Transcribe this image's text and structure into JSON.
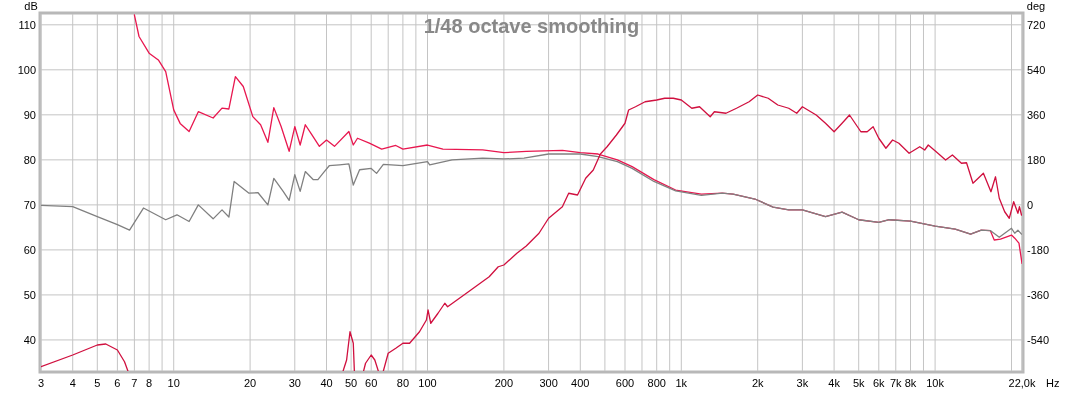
{
  "chart_data": {
    "type": "line",
    "title": "1/48 octave smoothing",
    "xlabel": "Hz",
    "ylabel": "dB",
    "y2label": "deg",
    "log": "x",
    "grid": true,
    "marker": "none",
    "line_style": "solid",
    "xlim": [
      3,
      22000
    ],
    "xticks": [
      3,
      4,
      5,
      6,
      7,
      8,
      {
        "value": 9,
        "label": null
      },
      10,
      20,
      30,
      40,
      50,
      60,
      {
        "value": 70,
        "label": null
      },
      80,
      {
        "value": 90,
        "label": null
      },
      100,
      200,
      300,
      400,
      {
        "value": 500,
        "label": null
      },
      600,
      {
        "value": 700,
        "label": null
      },
      800,
      {
        "value": 900,
        "label": null
      },
      {
        "value": 1000,
        "label": "1k"
      },
      {
        "value": 2000,
        "label": "2k"
      },
      {
        "value": 3000,
        "label": "3k"
      },
      {
        "value": 4000,
        "label": "4k"
      },
      {
        "value": 5000,
        "label": "5k"
      },
      {
        "value": 6000,
        "label": "6k"
      },
      {
        "value": 7000,
        "label": "7k"
      },
      {
        "value": 8000,
        "label": "8k"
      },
      {
        "value": 9000,
        "label": null
      },
      {
        "value": 10000,
        "label": "10k"
      },
      {
        "value": 20000,
        "label": null
      },
      {
        "value": 22000,
        "label": "22,0k"
      }
    ],
    "ylim": [
      33.1,
      112.4
    ],
    "yticks": [
      40,
      50,
      60,
      70,
      80,
      90,
      100,
      110
    ],
    "y2lim": [
      -664,
      764
    ],
    "y2ticks": [
      -540,
      -360,
      -180,
      0,
      180,
      360,
      540,
      720
    ],
    "series": [
      {
        "color": "#e8174f",
        "x": [
          7,
          7.3,
          8,
          8.7,
          9.3,
          10,
          10.6,
          11.5,
          12.5,
          14.3,
          15.5,
          16.5,
          17.5,
          18.8,
          20.5,
          22,
          23.5,
          24.8,
          26.5,
          28.5,
          30,
          31.5,
          33,
          35,
          37.5,
          40,
          43,
          49,
          51,
          53,
          59,
          66,
          75,
          80,
          100,
          115,
          165,
          200,
          245,
          340,
          400,
          470,
          560,
          640,
          780,
          950,
          1200,
          1450,
          1600,
          1950,
          2300,
          2650,
          3000,
          3700,
          4300,
          5000,
          6000,
          6600,
          8000,
          10000,
          12000,
          13800,
          15200,
          16500,
          17100,
          18100,
          20000,
          20600,
          21400,
          22000
        ],
        "values": [
          112.2,
          107.4,
          103.7,
          102.2,
          99.6,
          91.1,
          88.1,
          86.3,
          90.7,
          89.3,
          91.5,
          91.3,
          98.5,
          96.3,
          89.6,
          87.8,
          83.9,
          91.6,
          87.4,
          81.9,
          87.4,
          83.3,
          87.8,
          85.6,
          83,
          84.4,
          83,
          86.3,
          83.3,
          84.8,
          83.7,
          82.4,
          83.2,
          82.4,
          83.3,
          82.4,
          82.2,
          81.6,
          81.9,
          82.1,
          81.6,
          81.3,
          80,
          78.5,
          75.6,
          73.3,
          72.4,
          72.6,
          72.4,
          71.3,
          69.5,
          68.9,
          68.9,
          67.4,
          68.4,
          66.7,
          66.1,
          66.7,
          66.4,
          65.3,
          64.6,
          63.5,
          64.4,
          64.3,
          62.2,
          62.4,
          63.3,
          62.6,
          61.5,
          57
        ]
      },
      {
        "color": "#808080",
        "x": [
          3,
          4,
          5,
          6,
          6.7,
          7.6,
          9.3,
          10.3,
          11.5,
          12.5,
          14.3,
          15.5,
          16.5,
          17.3,
          19.8,
          21.5,
          23.5,
          24.8,
          27,
          28.5,
          30,
          31.5,
          33,
          35.5,
          37,
          39,
          41,
          45,
          49,
          51,
          54,
          60,
          63,
          67,
          80,
          100,
          102,
          125,
          165,
          200,
          240,
          300,
          340,
          400,
          470,
          560,
          640,
          780,
          950,
          1200,
          1450,
          1600,
          1950,
          2300,
          2650,
          3000,
          3700,
          4300,
          5000,
          6000,
          6600,
          8000,
          10000,
          12000,
          13800,
          15200,
          16500,
          17900,
          20000,
          20600,
          21200,
          21900
        ],
        "values": [
          69.9,
          69.6,
          67.4,
          65.6,
          64.4,
          69.3,
          66.7,
          67.8,
          66.3,
          70,
          66.9,
          68.9,
          67.3,
          75.2,
          72.6,
          72.7,
          70,
          75.9,
          73,
          71,
          76.7,
          73,
          77.4,
          75.6,
          75.6,
          77.2,
          78.7,
          78.9,
          79.1,
          74.4,
          77.8,
          78.1,
          77,
          79,
          78.7,
          79.6,
          78.9,
          80,
          80.4,
          80.2,
          80.4,
          81.3,
          81.3,
          81.3,
          80.7,
          79.6,
          78.1,
          75.2,
          73.1,
          72.1,
          72.6,
          72.4,
          71.3,
          69.5,
          68.9,
          68.9,
          67.4,
          68.4,
          66.7,
          66.1,
          66.7,
          66.4,
          65.3,
          64.6,
          63.5,
          64.4,
          64.3,
          62.8,
          64.8,
          63.7,
          64.4,
          63.5
        ]
      },
      {
        "color": "#d0103f",
        "axis": "y2",
        "x": [
          3,
          4,
          5,
          5.4,
          6,
          6.4,
          6.6,
          20,
          46.5,
          48,
          49.5,
          51,
          51.5,
          54,
          56,
          57,
          60,
          62,
          64,
          66,
          67,
          70,
          75,
          80,
          85,
          93,
          99,
          100.5,
          103,
          110,
          117,
          120,
          145,
          175,
          190,
          200,
          225,
          245,
          275,
          300,
          340,
          360,
          390,
          420,
          450,
          480,
          510,
          555,
          600,
          620,
          660,
          720,
          800,
          860,
          930,
          1000,
          1100,
          1180,
          1300,
          1350,
          1500,
          1650,
          1850,
          2000,
          2200,
          2400,
          2650,
          2850,
          3000,
          3400,
          3700,
          4000,
          4300,
          4600,
          5100,
          5400,
          5700,
          6000,
          6400,
          6800,
          7200,
          7900,
          8700,
          9100,
          9400,
          10100,
          11000,
          11700,
          12700,
          13300,
          14100,
          15500,
          16600,
          17300,
          17900,
          18800,
          19600,
          20400,
          21200,
          21500,
          21900
        ],
        "values": [
          -647,
          -600,
          -560,
          -556,
          -580,
          -627,
          -664,
          null,
          -664,
          -620,
          -507,
          -553,
          -664,
          null,
          -664,
          -633,
          -600,
          -620,
          -664,
          null,
          -664,
          -593,
          -573,
          -553,
          -553,
          -507,
          -460,
          -420,
          -473,
          -433,
          -393,
          -407,
          -347,
          -287,
          -247,
          -240,
          -193,
          -164,
          -113,
          -53,
          -7,
          47,
          40,
          107,
          140,
          204,
          233,
          280,
          327,
          380,
          393,
          413,
          420,
          427,
          427,
          420,
          387,
          393,
          353,
          373,
          367,
          387,
          413,
          440,
          427,
          400,
          387,
          367,
          393,
          360,
          327,
          293,
          327,
          360,
          293,
          293,
          313,
          267,
          227,
          260,
          247,
          207,
          233,
          220,
          240,
          213,
          180,
          200,
          167,
          169,
          87,
          127,
          53,
          113,
          27,
          -27,
          -53,
          13,
          -33,
          -7,
          -40
        ]
      }
    ]
  }
}
